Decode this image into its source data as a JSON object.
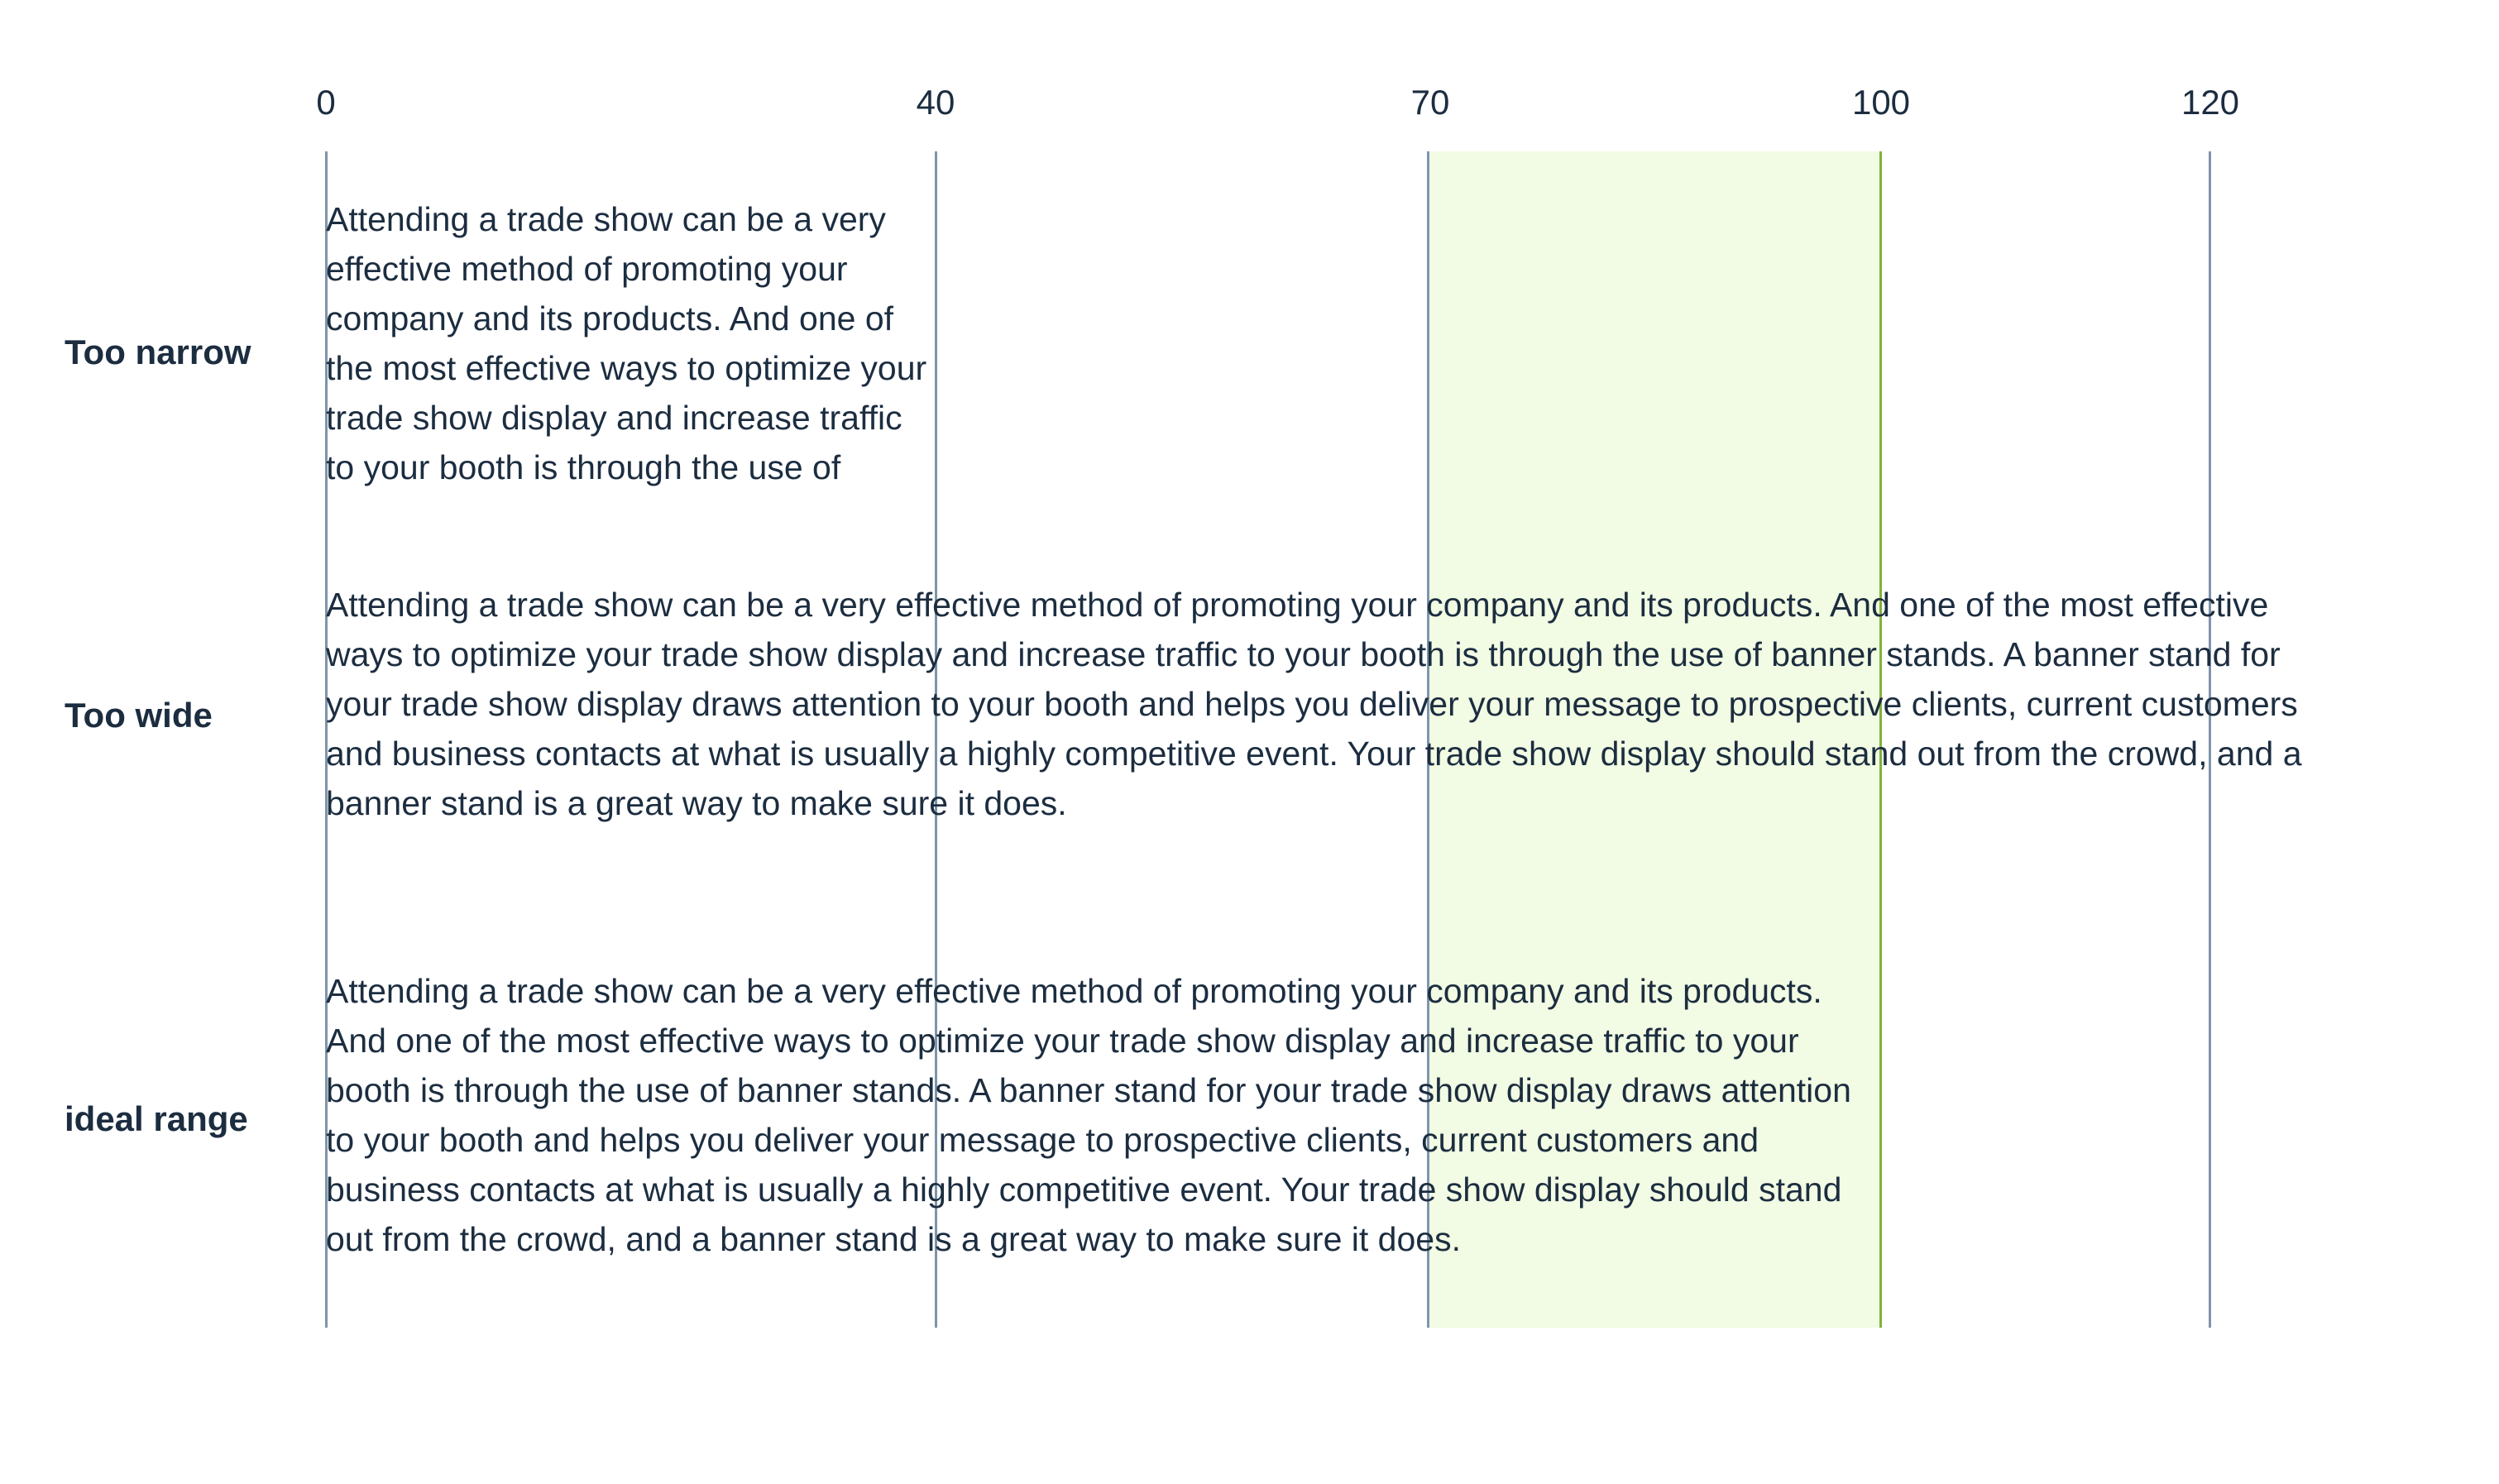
{
  "ruler": {
    "ticks": [
      "0",
      "40",
      "70",
      "100",
      "120"
    ]
  },
  "colors": {
    "text": "#1c2d40",
    "rule": "#7e95aa",
    "ideal_band_fill": "#f2fbe3",
    "ideal_band_edge": "#7fb33a"
  },
  "rows": [
    {
      "label": "Too narrow",
      "lines": [
        "Attending a trade show can be a very",
        "effective method of promoting your",
        "company and its products. And one of",
        "the most effective ways to optimize your",
        "trade show display and increase traffic",
        "to your booth is through the use of"
      ]
    },
    {
      "label": "Too wide",
      "lines": [
        "Attending a trade show can be a very effective method of promoting your company and its products. And one of the most effective",
        "ways to optimize your trade show display and increase traffic to your booth is through the use of banner stands. A banner stand for",
        "your trade show display draws attention to your booth and helps you deliver your message to prospective clients, current customers",
        "and business contacts at what is usually a highly competitive event. Your trade show display should stand out from the crowd, and a",
        "banner stand is a great way to make sure it does."
      ]
    },
    {
      "label": "ideal range",
      "lines": [
        "Attending a trade show can be a very effective method of promoting your company and its products.",
        "And one of the most effective ways to optimize your trade show display and increase traffic to your",
        "booth is through the use of banner stands. A banner stand for your trade show display draws attention",
        "to your booth and helps you deliver your message to prospective clients, current customers and",
        "business contacts at what is usually a highly competitive event. Your trade show display should stand",
        "out from the crowd, and a banner stand is a great way to make sure it does."
      ]
    }
  ]
}
